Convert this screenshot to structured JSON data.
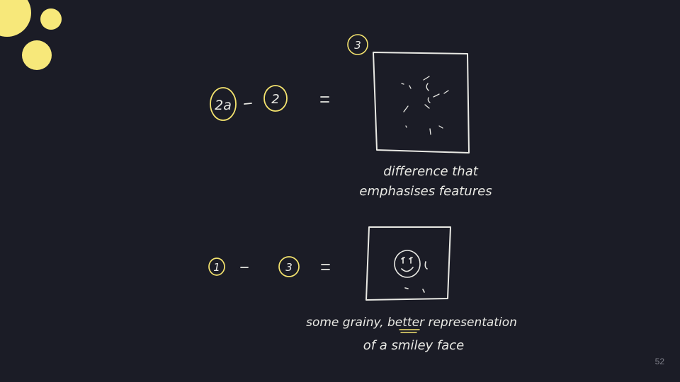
{
  "labels": {
    "eq1_left_a": "2a",
    "eq1_left_b": "2",
    "eq1_result": "3",
    "eq1_caption_line1": "difference that",
    "eq1_caption_line2": "emphasises features",
    "eq2_left_a": "1",
    "eq2_left_b": "3",
    "eq2_caption_line1": "some grainy, better representation",
    "eq2_caption_line2": "of a smiley face"
  },
  "page_number": "52",
  "colors": {
    "background": "#1b1c26",
    "ink": "#e9e9e4",
    "accent_yellow": "#f7e87a",
    "circle_stroke": "#f4e36e"
  }
}
